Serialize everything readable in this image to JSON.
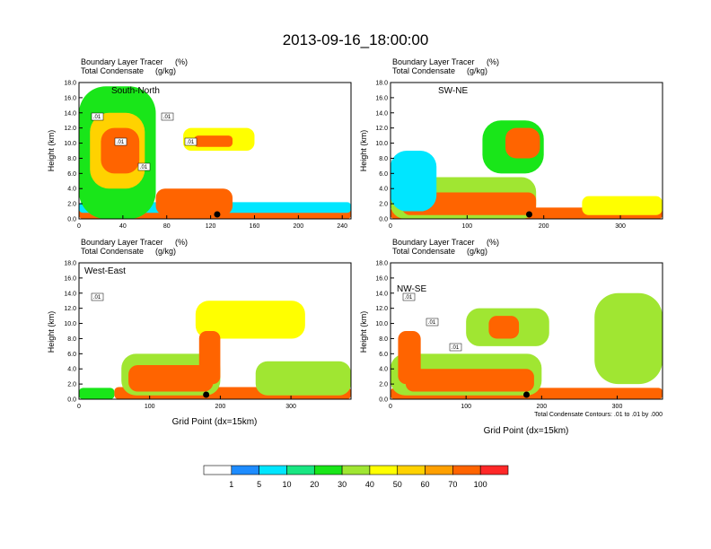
{
  "title": "2013-09-16_18:00:00",
  "palette": [
    "#ffffff",
    "#1e8cff",
    "#00e6ff",
    "#19e682",
    "#19e619",
    "#a0e632",
    "#ffff00",
    "#ffd200",
    "#ffa000",
    "#ff6400",
    "#ff2828"
  ],
  "colorbar": {
    "labels": [
      "1",
      "5",
      "10",
      "20",
      "30",
      "40",
      "50",
      "60",
      "70",
      "100"
    ]
  },
  "chart_data": [
    {
      "type": "heatmap",
      "panel_label": "South-North",
      "field_labels": [
        "Boundary Layer Tracer",
        "Total Condensate"
      ],
      "field_units": [
        "(%)",
        "(g/kg)"
      ],
      "ylabel": "Height (km)",
      "xlabel": "",
      "xlim": [
        0,
        248
      ],
      "ylim": [
        0,
        18
      ],
      "x_ticks": [
        "0",
        "40",
        "80",
        "120",
        "160",
        "200",
        "240"
      ],
      "x_tick_values": [
        0,
        40,
        80,
        120,
        160,
        200,
        240
      ],
      "y_ticks": [
        "0.0",
        "2.0",
        "4.0",
        "6.0",
        "8.0",
        "10.0",
        "12.0",
        "14.0",
        "16.0",
        "18.0"
      ],
      "contour_labels": [
        ".01",
        ".01",
        ".01",
        ".01",
        ".01"
      ],
      "marker_x": 126,
      "blobs": [
        {
          "x": [
            0,
            248
          ],
          "y": [
            0,
            1.4
          ],
          "level": 90
        },
        {
          "x": [
            0,
            248
          ],
          "y": [
            0.8,
            2.2
          ],
          "level": 8
        },
        {
          "x": [
            70,
            140
          ],
          "y": [
            0.5,
            4.0
          ],
          "level": 75
        },
        {
          "x": [
            0,
            70
          ],
          "y": [
            0,
            17.5
          ],
          "level": 25
        },
        {
          "x": [
            10,
            60
          ],
          "y": [
            4,
            14
          ],
          "level": 55
        },
        {
          "x": [
            20,
            55
          ],
          "y": [
            6,
            12
          ],
          "level": 85
        },
        {
          "x": [
            95,
            160
          ],
          "y": [
            9,
            12
          ],
          "level": 45
        },
        {
          "x": [
            105,
            140
          ],
          "y": [
            9.5,
            11
          ],
          "level": 85
        }
      ]
    },
    {
      "type": "heatmap",
      "panel_label": "SW-NE",
      "field_labels": [
        "Boundary Layer Tracer",
        "Total Condensate"
      ],
      "field_units": [
        "(%)",
        "(g/kg)"
      ],
      "ylabel": "Height (km)",
      "xlabel": "",
      "xlim": [
        0,
        355
      ],
      "ylim": [
        0,
        18
      ],
      "x_ticks": [
        "0",
        "100",
        "200",
        "300"
      ],
      "x_tick_values": [
        0,
        100,
        200,
        300
      ],
      "y_ticks": [
        "0.0",
        "2.0",
        "4.0",
        "6.0",
        "8.0",
        "10.0",
        "12.0",
        "14.0",
        "16.0",
        "18.0"
      ],
      "contour_labels": [],
      "marker_x": 181,
      "blobs": [
        {
          "x": [
            0,
            355
          ],
          "y": [
            0,
            1.5
          ],
          "level": 90
        },
        {
          "x": [
            0,
            190
          ],
          "y": [
            0,
            5.5
          ],
          "level": 35
        },
        {
          "x": [
            15,
            190
          ],
          "y": [
            0.5,
            3.5
          ],
          "level": 80
        },
        {
          "x": [
            0,
            60
          ],
          "y": [
            1,
            9
          ],
          "level": 5
        },
        {
          "x": [
            120,
            200
          ],
          "y": [
            6,
            13
          ],
          "level": 25
        },
        {
          "x": [
            150,
            195
          ],
          "y": [
            8,
            12
          ],
          "level": 80
        },
        {
          "x": [
            250,
            355
          ],
          "y": [
            0.5,
            3
          ],
          "level": 45
        }
      ]
    },
    {
      "type": "heatmap",
      "panel_label": "West-East",
      "field_labels": [
        "Boundary Layer Tracer",
        "Total Condensate"
      ],
      "field_units": [
        "(%)",
        "(g/kg)"
      ],
      "ylabel": "Height (km)",
      "xlabel": "Grid Point (dx=15km)",
      "xlim": [
        0,
        385
      ],
      "ylim": [
        0,
        18
      ],
      "x_ticks": [
        "0",
        "100",
        "200",
        "300"
      ],
      "x_tick_values": [
        0,
        100,
        200,
        300
      ],
      "y_ticks": [
        "0.0",
        "2.0",
        "4.0",
        "6.0",
        "8.0",
        "10.0",
        "12.0",
        "14.0",
        "16.0",
        "18.0"
      ],
      "contour_labels": [
        ".01"
      ],
      "marker_x": 180,
      "blobs": [
        {
          "x": [
            50,
            385
          ],
          "y": [
            0,
            1.6
          ],
          "level": 90
        },
        {
          "x": [
            60,
            200
          ],
          "y": [
            0.5,
            6
          ],
          "level": 30
        },
        {
          "x": [
            70,
            190
          ],
          "y": [
            1,
            4.5
          ],
          "level": 75
        },
        {
          "x": [
            165,
            320
          ],
          "y": [
            8,
            13
          ],
          "level": 40
        },
        {
          "x": [
            170,
            200
          ],
          "y": [
            2,
            9
          ],
          "level": 85
        },
        {
          "x": [
            250,
            385
          ],
          "y": [
            0.5,
            5
          ],
          "level": 35
        },
        {
          "x": [
            0,
            50
          ],
          "y": [
            0,
            1.5
          ],
          "level": 20
        }
      ]
    },
    {
      "type": "heatmap",
      "panel_label": "NW-SE",
      "field_labels": [
        "Boundary Layer Tracer",
        "Total Condensate"
      ],
      "field_units": [
        "(%)",
        "(g/kg)"
      ],
      "ylabel": "Height (km)",
      "xlabel": "Grid Point (dx=15km)",
      "xlim": [
        0,
        360
      ],
      "ylim": [
        0,
        18
      ],
      "x_ticks": [
        "0",
        "100",
        "200",
        "300"
      ],
      "x_tick_values": [
        0,
        100,
        200,
        300
      ],
      "y_ticks": [
        "0.0",
        "2.0",
        "4.0",
        "6.0",
        "8.0",
        "10.0",
        "12.0",
        "14.0",
        "16.0",
        "18.0"
      ],
      "contour_labels": [
        ".01",
        ".01",
        ".01"
      ],
      "marker_x": 180,
      "note": "Total Condensate Contours: .01 to .01 by .000",
      "blobs": [
        {
          "x": [
            0,
            360
          ],
          "y": [
            0,
            1.5
          ],
          "level": 90
        },
        {
          "x": [
            0,
            200
          ],
          "y": [
            0.5,
            6
          ],
          "level": 35
        },
        {
          "x": [
            20,
            190
          ],
          "y": [
            1,
            4
          ],
          "level": 80
        },
        {
          "x": [
            100,
            210
          ],
          "y": [
            7,
            12
          ],
          "level": 35
        },
        {
          "x": [
            130,
            170
          ],
          "y": [
            8,
            11
          ],
          "level": 75
        },
        {
          "x": [
            270,
            360
          ],
          "y": [
            2,
            14
          ],
          "level": 30
        },
        {
          "x": [
            10,
            40
          ],
          "y": [
            2,
            9
          ],
          "level": 75
        }
      ]
    }
  ]
}
